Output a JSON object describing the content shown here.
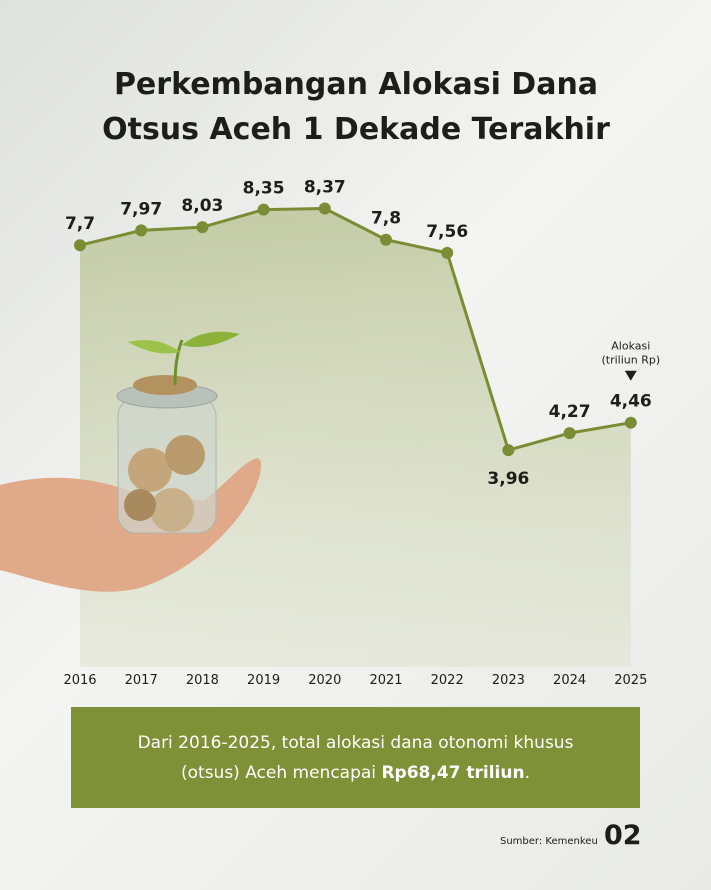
{
  "chart_data": {
    "type": "line",
    "title": [
      "Perkembangan Alokasi Dana",
      "Otsus Aceh 1 Dekade Terakhir"
    ],
    "categories": [
      "2016",
      "2017",
      "2018",
      "2019",
      "2020",
      "2021",
      "2022",
      "2023",
      "2024",
      "2025"
    ],
    "values": [
      7.7,
      7.97,
      8.03,
      8.35,
      8.37,
      7.8,
      7.56,
      3.96,
      4.27,
      4.46
    ],
    "value_labels": [
      "7,7",
      "7,97",
      "8,03",
      "8,35",
      "8,37",
      "7,8",
      "7,56",
      "3,96",
      "4,27",
      "4,46"
    ],
    "color": "#7a8c34",
    "ylim": [
      0,
      9
    ],
    "annotation": [
      "Alokasi",
      "(triliun Rp)"
    ]
  },
  "summary": [
    "Dari 2016-2025, total alokasi dana otonomi khusus",
    "(otsus) Aceh mencapai ",
    "Rp68,47 triliun",
    "."
  ],
  "source": "Sumber: Kemenkeu",
  "page_number": "02"
}
